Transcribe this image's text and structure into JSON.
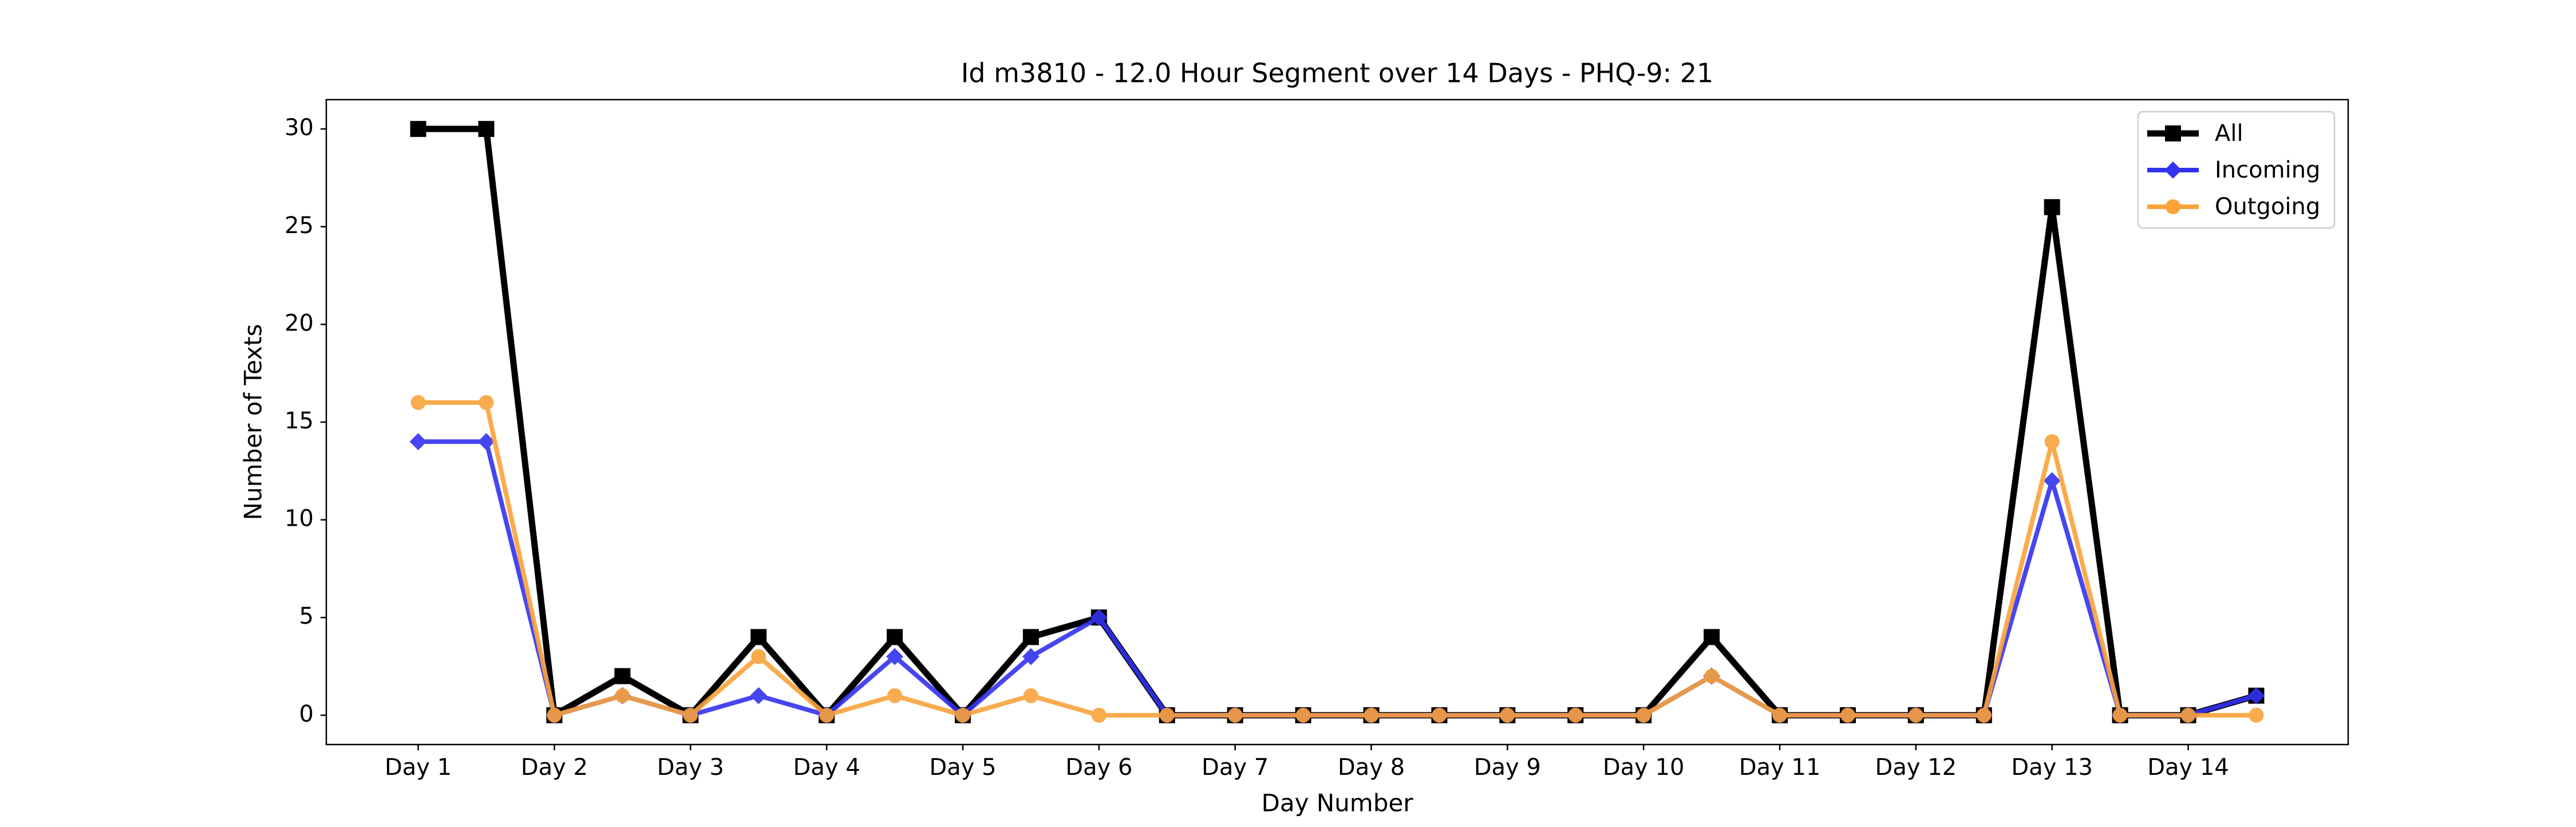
{
  "chart_data": {
    "type": "line",
    "title": "Id m3810 - 12.0 Hour Segment over 14 Days - PHQ-9: 21",
    "x_label": "Day Number",
    "y_label": "Number of Texts",
    "categories": [
      "Day 1",
      null,
      "Day 2",
      null,
      "Day 3",
      null,
      "Day 4",
      null,
      "Day 5",
      null,
      "Day 6",
      null,
      "Day 7",
      null,
      "Day 8",
      null,
      "Day 9",
      null,
      "Day 10",
      null,
      "Day 11",
      null,
      "Day 12",
      null,
      "Day 13",
      null,
      "Day 14",
      null
    ],
    "series": [
      {
        "name": "All",
        "color": "#000000",
        "marker": "square",
        "values": [
          30,
          30,
          0,
          2,
          0,
          4,
          0,
          4,
          0,
          4,
          5,
          0,
          0,
          0,
          0,
          0,
          0,
          0,
          0,
          4,
          0,
          0,
          0,
          0,
          26,
          0,
          0,
          1
        ]
      },
      {
        "name": "Incoming",
        "color": "#3232f0",
        "marker": "diamond",
        "values": [
          14,
          14,
          0,
          1,
          0,
          1,
          0,
          3,
          0,
          3,
          5,
          0,
          0,
          0,
          0,
          0,
          0,
          0,
          0,
          2,
          0,
          0,
          0,
          0,
          12,
          0,
          0,
          1
        ]
      },
      {
        "name": "Outgoing",
        "color": "#f9a23a",
        "marker": "circle",
        "values": [
          16,
          16,
          0,
          1,
          0,
          3,
          0,
          1,
          0,
          1,
          0,
          0,
          0,
          0,
          0,
          0,
          0,
          0,
          0,
          2,
          0,
          0,
          0,
          0,
          14,
          0,
          0,
          0
        ]
      }
    ],
    "ylim": [
      -1.5,
      31.5
    ],
    "yticks": [
      0,
      5,
      10,
      15,
      20,
      25,
      30
    ],
    "grid": false,
    "legend": "upper right"
  }
}
